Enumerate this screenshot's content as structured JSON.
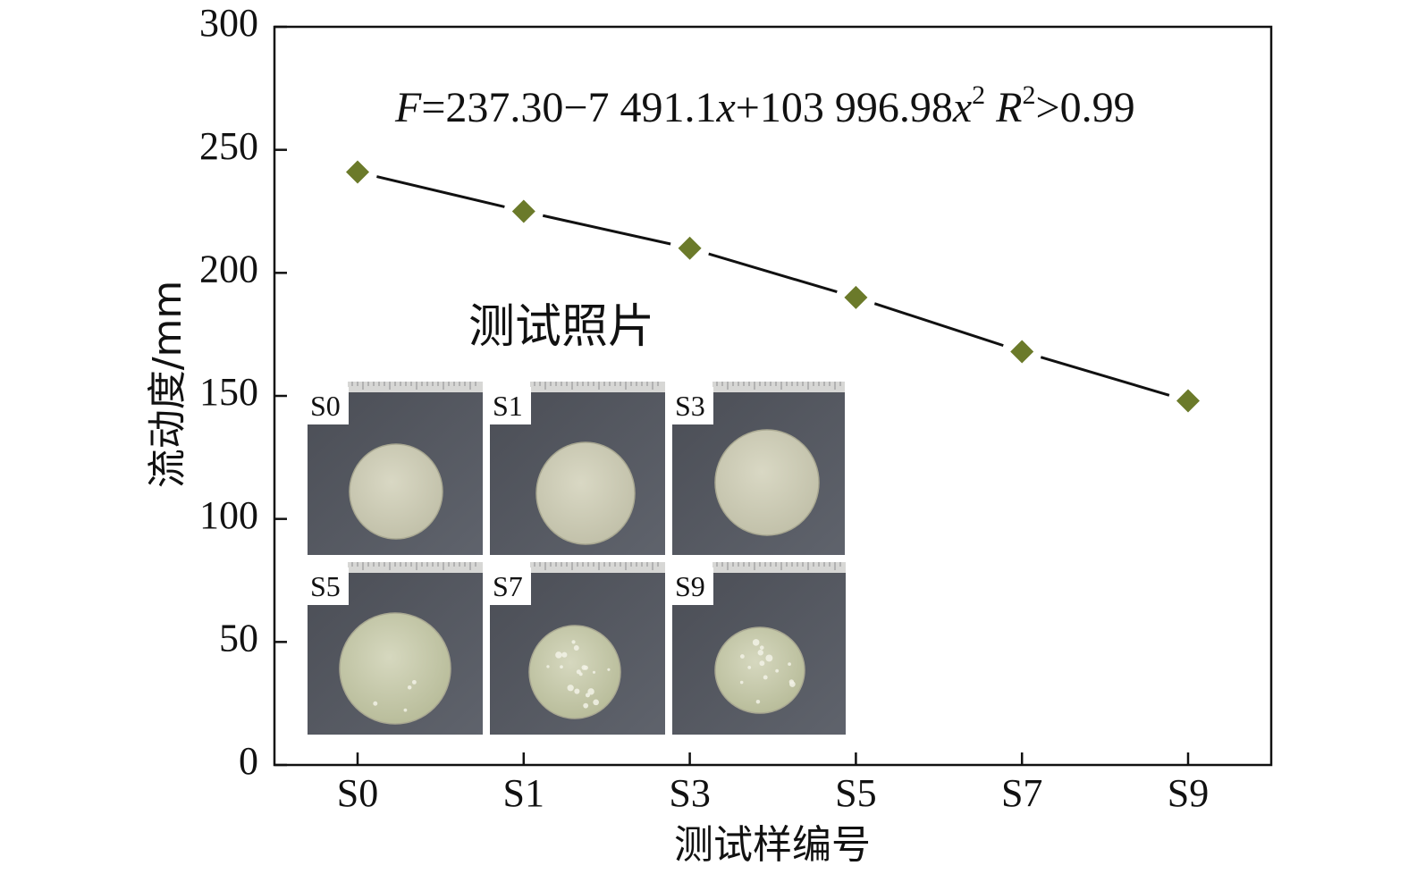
{
  "chart_data": {
    "type": "line",
    "categories": [
      "S0",
      "S1",
      "S3",
      "S5",
      "S7",
      "S9"
    ],
    "values": [
      241,
      225,
      210,
      190,
      168,
      148
    ],
    "xlabel": "测试样编号",
    "ylabel": "流动度/mm",
    "ylim": [
      0,
      300
    ],
    "yticks": [
      0,
      50,
      100,
      150,
      200,
      250,
      300
    ],
    "grid": false,
    "marker": "diamond",
    "marker_color": "#6b7a2a",
    "line_color": "#111111",
    "annotation": {
      "F": "F",
      "eq": "=237.30−7 491.1",
      "x1": "x",
      "plus": "+103 996.98",
      "x2": "x",
      "sup2": "2",
      "R": "R",
      "rsup": "2",
      "tail": ">0.99"
    },
    "inset": {
      "title": "测试照片",
      "photos": [
        "S0",
        "S1",
        "S3",
        "S5",
        "S7",
        "S9"
      ]
    }
  }
}
